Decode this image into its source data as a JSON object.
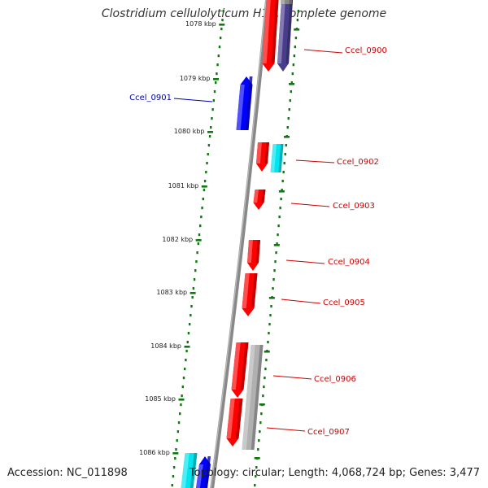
{
  "title": "Clostridium cellulolyticum H10, complete genome",
  "footer": {
    "accession": "Accession: NC_011898",
    "topology": "Topology: circular; Length: 4,068,724 bp; Genes: 3,477"
  },
  "ruler": {
    "labels": [
      "1078 kbp",
      "1079 kbp",
      "1080 kbp",
      "1081 kbp",
      "1082 kbp",
      "1083 kbp",
      "1084 kbp",
      "1085 kbp",
      "1086 kbp"
    ]
  },
  "colors": {
    "forward_cds": "#ff0000",
    "reverse_cds": "#0000ff",
    "cyan_feature": "#00e5ee",
    "purple_feature": "#483d8b",
    "gray_feature": "#b0b0b0",
    "backbone": "#888888",
    "ruler_ticks": "#117711",
    "label_forward": "#cc0000",
    "label_reverse": "#0000aa"
  },
  "gene_labels": [
    {
      "name": "Ccel_0900",
      "strand": "forward"
    },
    {
      "name": "Ccel_0901",
      "strand": "reverse"
    },
    {
      "name": "Ccel_0902",
      "strand": "forward"
    },
    {
      "name": "Ccel_0903",
      "strand": "forward"
    },
    {
      "name": "Ccel_0904",
      "strand": "forward"
    },
    {
      "name": "Ccel_0905",
      "strand": "forward"
    },
    {
      "name": "Ccel_0906",
      "strand": "forward"
    },
    {
      "name": "Ccel_0907",
      "strand": "forward"
    }
  ]
}
